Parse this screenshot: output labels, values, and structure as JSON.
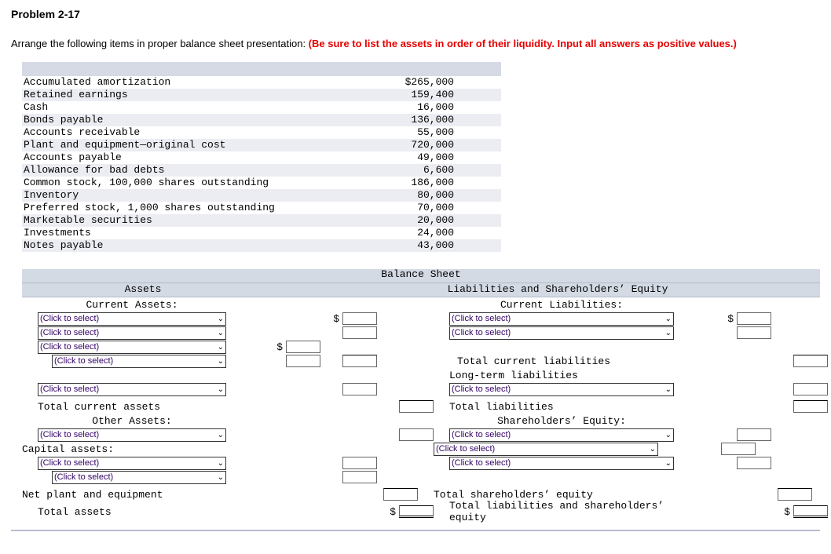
{
  "title": "Problem 2-17",
  "prompt_plain": "Arrange the following items in proper balance sheet presentation: ",
  "prompt_red": "(Be sure to list the assets in order of their liquidity. Input all answers as positive values.)",
  "given_items": [
    {
      "label": "Accumulated amortization",
      "value": "$265,000"
    },
    {
      "label": "Retained earnings",
      "value": "159,400"
    },
    {
      "label": "Cash",
      "value": "16,000"
    },
    {
      "label": "Bonds payable",
      "value": "136,000"
    },
    {
      "label": "Accounts receivable",
      "value": "55,000"
    },
    {
      "label": "Plant and equipment—original cost",
      "value": "720,000"
    },
    {
      "label": "Accounts payable",
      "value": "49,000"
    },
    {
      "label": "Allowance for bad debts",
      "value": "6,600"
    },
    {
      "label": "Common stock, 100,000 shares outstanding",
      "value": "186,000"
    },
    {
      "label": "Inventory",
      "value": "80,000"
    },
    {
      "label": "Preferred stock, 1,000 shares outstanding",
      "value": "70,000"
    },
    {
      "label": "Marketable securities",
      "value": "20,000"
    },
    {
      "label": "Investments",
      "value": "24,000"
    },
    {
      "label": "Notes payable",
      "value": "43,000"
    }
  ],
  "sheet_title": "Balance Sheet",
  "col_left": "Assets",
  "col_right": "Liabilities and Shareholders’ Equity",
  "labels": {
    "current_assets": "Current Assets:",
    "total_current_assets": "Total current assets",
    "other_assets": "Other Assets:",
    "capital_assets": "Capital assets:",
    "net_plant": "Net plant and equipment",
    "total_assets": "Total assets",
    "current_liabilities": "Current Liabilities:",
    "total_current_liabilities": "Total current liabilities",
    "long_term_liabilities": "Long-term liabilities",
    "total_liabilities": "Total liabilities",
    "shareholders_equity": "Shareholders’ Equity:",
    "total_sh_equity": "Total shareholders’ equity",
    "total_l_se": "Total liabilities and shareholders’ equity",
    "dollar": "$"
  },
  "select_placeholder": "(Click to select)"
}
